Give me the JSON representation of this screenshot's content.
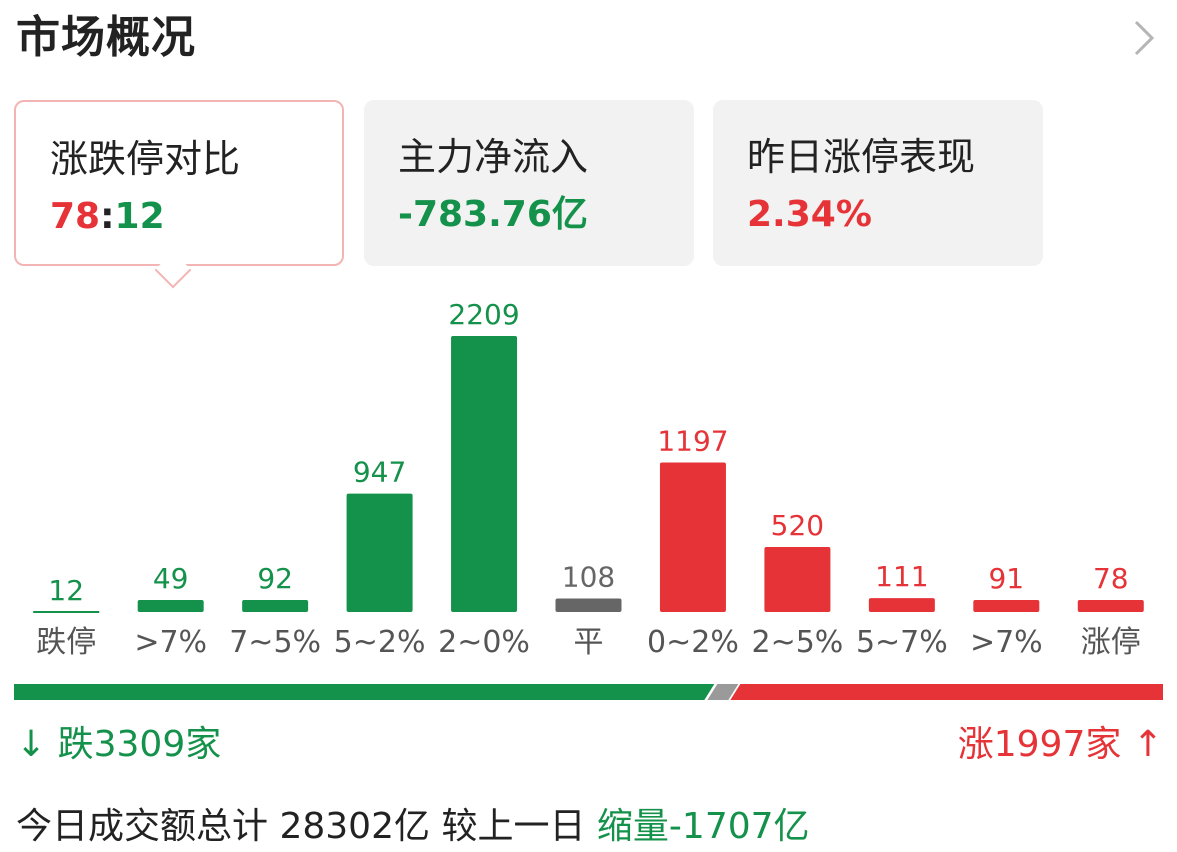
{
  "header": {
    "title": "市场概况",
    "more_icon": "chevron-right-icon"
  },
  "cards": [
    {
      "label": "涨跌停对比",
      "value_up": "78",
      "value_sep": ":",
      "value_down": "12",
      "active": true
    },
    {
      "label": "主力净流入",
      "value": "-783.76亿",
      "color": "#14914a"
    },
    {
      "label": "昨日涨停表现",
      "value": "2.34%",
      "color": "#e63337"
    }
  ],
  "colors": {
    "green": "#14914a",
    "red": "#e63337",
    "gray": "#666666"
  },
  "chart_data": {
    "type": "bar",
    "categories": [
      "跌停",
      ">7%",
      "7~5%",
      "5~2%",
      "2~0%",
      "平",
      "0~2%",
      "2~5%",
      "5~7%",
      ">7%",
      "涨停"
    ],
    "values": [
      12,
      49,
      92,
      947,
      2209,
      108,
      1197,
      520,
      111,
      91,
      78
    ],
    "bar_colors": [
      "green",
      "green",
      "green",
      "green",
      "green",
      "gray",
      "red",
      "red",
      "red",
      "red",
      "red"
    ],
    "title": "",
    "xlabel": "",
    "ylabel": ""
  },
  "breadth": {
    "fall_label": "跌3309家",
    "rise_label": "涨1997家",
    "fall_count": 3309,
    "rise_count": 1997,
    "fall_icon": "arrow-down-icon",
    "rise_icon": "arrow-up-icon"
  },
  "summary": {
    "prefix": "今日成交额总计",
    "total": "28302亿",
    "compare": "较上一日",
    "change": "缩量-1707亿"
  }
}
